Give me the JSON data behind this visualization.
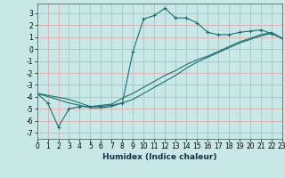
{
  "title": "",
  "xlabel": "Humidex (Indice chaleur)",
  "bg_color": "#c8e8e8",
  "grid_color": "#e8a0a0",
  "line_color": "#1a7070",
  "xlim": [
    0,
    23
  ],
  "ylim": [
    -7.5,
    3.8
  ],
  "xticks": [
    0,
    1,
    2,
    3,
    4,
    5,
    6,
    7,
    8,
    9,
    10,
    11,
    12,
    13,
    14,
    15,
    16,
    17,
    18,
    19,
    20,
    21,
    22,
    23
  ],
  "yticks": [
    -7,
    -6,
    -5,
    -4,
    -3,
    -2,
    -1,
    0,
    1,
    2,
    3
  ],
  "series": [
    {
      "x": [
        0,
        1,
        2,
        3,
        4,
        5,
        6,
        7,
        8,
        9,
        10,
        11,
        12,
        13,
        14,
        15,
        16,
        17,
        18,
        19,
        20,
        21,
        22,
        23
      ],
      "y": [
        -3.7,
        -4.5,
        -6.5,
        -5.0,
        -4.8,
        -4.8,
        -4.8,
        -4.7,
        -4.5,
        -0.2,
        2.5,
        2.8,
        3.4,
        2.6,
        2.6,
        2.2,
        1.4,
        1.2,
        1.2,
        1.4,
        1.5,
        1.6,
        1.3,
        0.9
      ],
      "marker": "+"
    },
    {
      "x": [
        0,
        3,
        4,
        5,
        6,
        7,
        8,
        9,
        10,
        11,
        12,
        13,
        14,
        15,
        16,
        17,
        18,
        19,
        20,
        21,
        22,
        23
      ],
      "y": [
        -3.7,
        -4.2,
        -4.5,
        -4.8,
        -4.7,
        -4.6,
        -4.1,
        -3.7,
        -3.2,
        -2.7,
        -2.2,
        -1.8,
        -1.3,
        -0.9,
        -0.6,
        -0.2,
        0.2,
        0.6,
        0.9,
        1.2,
        1.4,
        0.9
      ],
      "marker": null
    },
    {
      "x": [
        0,
        3,
        4,
        5,
        6,
        7,
        8,
        9,
        10,
        11,
        12,
        13,
        14,
        15,
        16,
        17,
        18,
        19,
        20,
        21,
        22,
        23
      ],
      "y": [
        -3.7,
        -4.5,
        -4.7,
        -4.9,
        -4.9,
        -4.8,
        -4.5,
        -4.2,
        -3.7,
        -3.2,
        -2.7,
        -2.2,
        -1.6,
        -1.1,
        -0.7,
        -0.3,
        0.1,
        0.5,
        0.8,
        1.1,
        1.3,
        0.9
      ],
      "marker": null
    }
  ],
  "tick_fontsize": 5.5,
  "xlabel_fontsize": 6.5,
  "linewidth": 0.8,
  "markersize": 3.5,
  "markeredgewidth": 0.8
}
